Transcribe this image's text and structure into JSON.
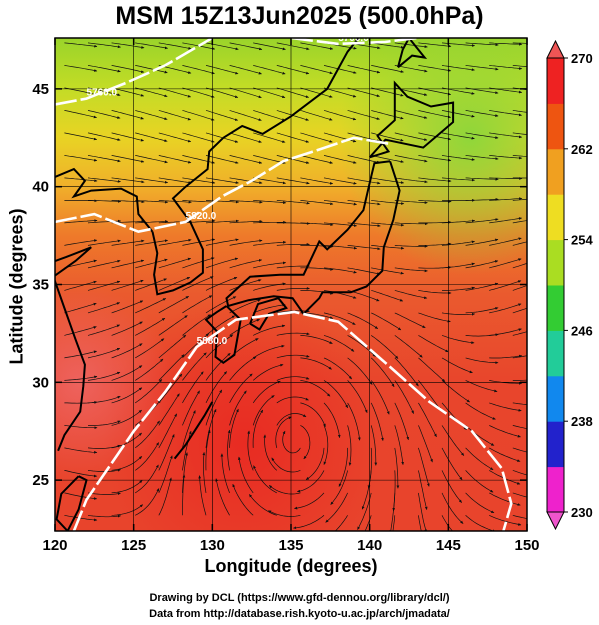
{
  "title": "MSM 15Z13Jun2025 (500.0hPa)",
  "xlabel": "Longitude (degrees)",
  "ylabel": "Latitude  (degrees)",
  "credits": [
    "Drawing by DCL (https://www.gfd-dennou.org/library/dcl/)",
    "Data from http://database.rish.kyoto-u.ac.jp/arch/jmadata/"
  ],
  "map": {
    "lon_range": [
      120,
      150
    ],
    "lat_range": [
      22.4,
      47.6
    ],
    "lon_ticks": [
      120,
      125,
      130,
      135,
      140,
      145,
      150
    ],
    "lat_ticks": [
      25,
      30,
      35,
      40,
      45
    ],
    "field": "temperature",
    "circulation_center": {
      "lon": 135.2,
      "lat": 27.0
    },
    "contours": [
      {
        "label": "5880.0",
        "level": 5880
      },
      {
        "label": "5820.0",
        "level": 5820
      },
      {
        "label": "5760.0",
        "level": 5760
      },
      {
        "label": "5700.0",
        "level": 5700
      }
    ]
  },
  "colorbar": {
    "min": 230,
    "max": 270,
    "tick_labels": [
      "270",
      "262",
      "254",
      "246",
      "238",
      "230"
    ],
    "colors": [
      "#ee22cc",
      "#2222cc",
      "#1188ee",
      "#22cc99",
      "#33cc33",
      "#aadd22",
      "#eedd22",
      "#f0a020",
      "#ee5511",
      "#ee2222"
    ]
  }
}
